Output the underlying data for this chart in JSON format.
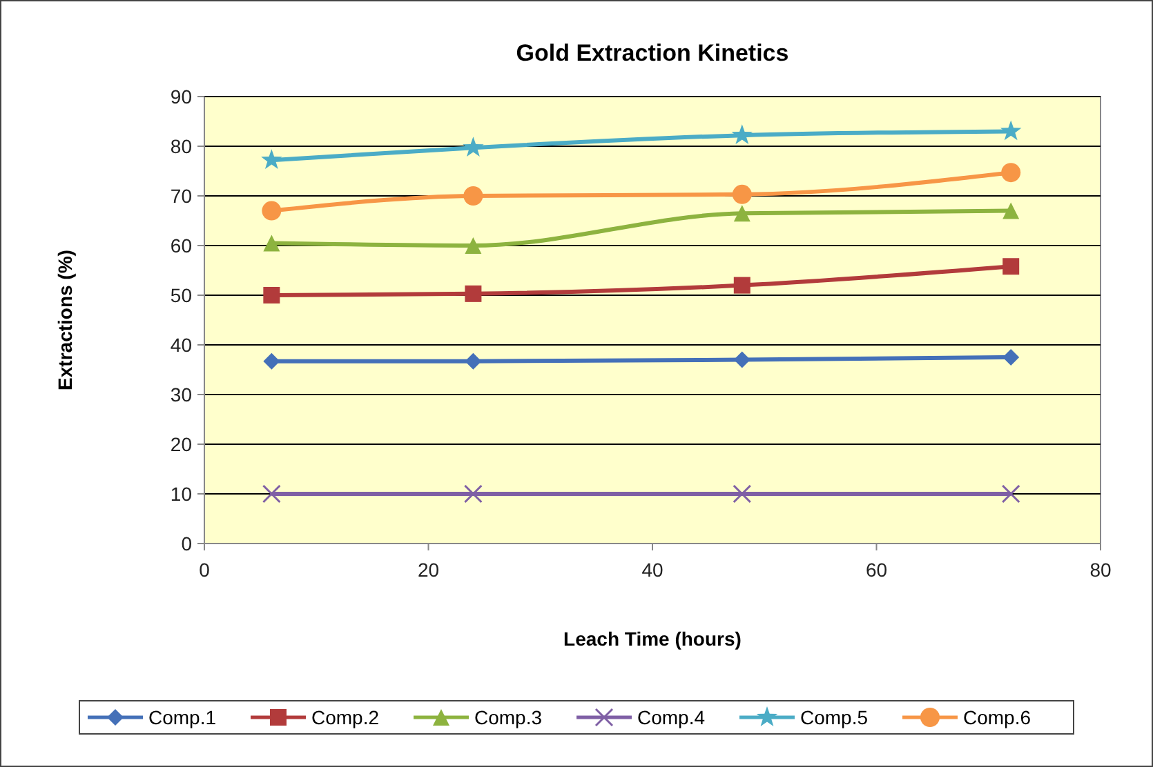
{
  "chart_data": {
    "type": "line",
    "title": "Gold Extraction Kinetics",
    "xlabel": "Leach Time (hours)",
    "ylabel": "Extractions (%)",
    "x": [
      6,
      24,
      48,
      72
    ],
    "series": [
      {
        "name": "Comp.1",
        "color": "#4470b8",
        "marker": "diamond",
        "values": [
          36.7,
          36.7,
          37,
          37.5
        ]
      },
      {
        "name": "Comp.2",
        "color": "#b23b3b",
        "marker": "square",
        "values": [
          50,
          50.3,
          52,
          55.8
        ]
      },
      {
        "name": "Comp.3",
        "color": "#8db33f",
        "marker": "triangle",
        "values": [
          60.5,
          60,
          66.5,
          67
        ]
      },
      {
        "name": "Comp.4",
        "color": "#7f5fa5",
        "marker": "cross",
        "values": [
          10,
          10,
          10,
          10
        ]
      },
      {
        "name": "Comp.5",
        "color": "#4bacc6",
        "marker": "star",
        "values": [
          77.2,
          79.7,
          82.2,
          83
        ]
      },
      {
        "name": "Comp.6",
        "color": "#f79646",
        "marker": "circle",
        "values": [
          67,
          70,
          70.3,
          74.7
        ]
      }
    ],
    "xlim": [
      0,
      80
    ],
    "xticks": [
      0,
      20,
      40,
      60,
      80
    ],
    "ylim": [
      0,
      90
    ],
    "yticks": [
      0,
      10,
      20,
      30,
      40,
      50,
      60,
      70,
      80,
      90
    ],
    "grid": "y",
    "legend": "bottom",
    "line_style": "solid"
  }
}
